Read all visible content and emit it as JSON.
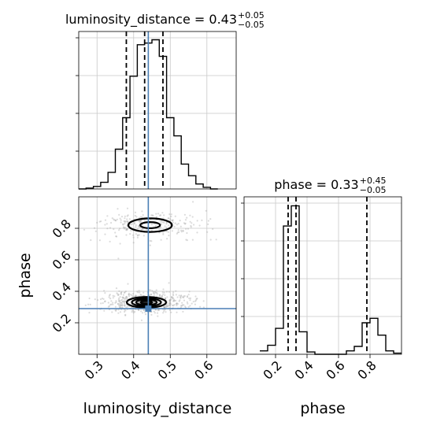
{
  "chart_data": {
    "type": "corner",
    "parameters": [
      "luminosity_distance",
      "phase"
    ],
    "truths": {
      "luminosity_distance": 0.44,
      "phase": 0.29
    },
    "colors": {
      "truth": "#4a7fb5",
      "hist": "#000000",
      "grid": "#c8c8c8",
      "scatter": "#9a9a9a"
    },
    "panels": [
      {
        "id": "hist-luminosity-distance",
        "kind": "histogram",
        "param": "luminosity_distance",
        "title": "luminosity_distance = 0.43",
        "title_main": "luminosity_distance = 0.43",
        "title_sup": "+0.05",
        "title_sub": "−0.05",
        "xlim": [
          0.25,
          0.68
        ],
        "xticks": [
          0.3,
          0.4,
          0.5,
          0.6
        ],
        "quantiles": [
          0.38,
          0.43,
          0.48
        ],
        "bin_edges": [
          0.25,
          0.27,
          0.29,
          0.31,
          0.33,
          0.35,
          0.37,
          0.39,
          0.41,
          0.43,
          0.45,
          0.47,
          0.49,
          0.51,
          0.53,
          0.55,
          0.57,
          0.59,
          0.61,
          0.63
        ],
        "counts": [
          0.0,
          0.5,
          1.5,
          4.0,
          10.0,
          24.0,
          43.0,
          68.0,
          87.0,
          88.0,
          90.0,
          80.0,
          43.0,
          32.0,
          15.0,
          8.0,
          3.0,
          1.0,
          0.0
        ],
        "ymax": 95
      },
      {
        "id": "hist-phase",
        "kind": "histogram",
        "param": "phase",
        "title": "phase = 0.33",
        "title_main": "phase = 0.33",
        "title_sup": "+0.45",
        "title_sub": "−0.05",
        "xlim": [
          0.0,
          1.0
        ],
        "xticks": [
          0.2,
          0.4,
          0.6,
          0.8
        ],
        "quantiles": [
          0.28,
          0.33,
          0.78
        ],
        "bin_edges": [
          0.1,
          0.15,
          0.2,
          0.25,
          0.3,
          0.35,
          0.4,
          0.45,
          0.5,
          0.55,
          0.6,
          0.65,
          0.7,
          0.75,
          0.8,
          0.85,
          0.9,
          0.95,
          1.0
        ],
        "counts": [
          1.5,
          4.0,
          11.5,
          57.0,
          66.0,
          10.0,
          1.0,
          0.0,
          0.0,
          0.0,
          0.0,
          1.5,
          3.5,
          14.0,
          16.0,
          8.5,
          1.5,
          0.5
        ],
        "ymax": 70
      },
      {
        "id": "joint-luminosity-distance-phase",
        "kind": "2d-density",
        "x_param": "luminosity_distance",
        "y_param": "phase",
        "xlim": [
          0.25,
          0.68
        ],
        "ylim": [
          0.0,
          1.0
        ],
        "xticks": [
          0.3,
          0.4,
          0.5,
          0.6
        ],
        "yticks": [
          0.2,
          0.4,
          0.6,
          0.8
        ],
        "modes": [
          {
            "center": [
              0.445,
              0.82
            ],
            "weight": 0.3,
            "spread": [
              0.07,
              0.06
            ]
          },
          {
            "center": [
              0.435,
              0.33
            ],
            "weight": 0.7,
            "spread": [
              0.06,
              0.045
            ]
          }
        ]
      }
    ],
    "xlabels": [
      "luminosity_distance",
      "phase"
    ],
    "ylabels": [
      "phase"
    ]
  }
}
